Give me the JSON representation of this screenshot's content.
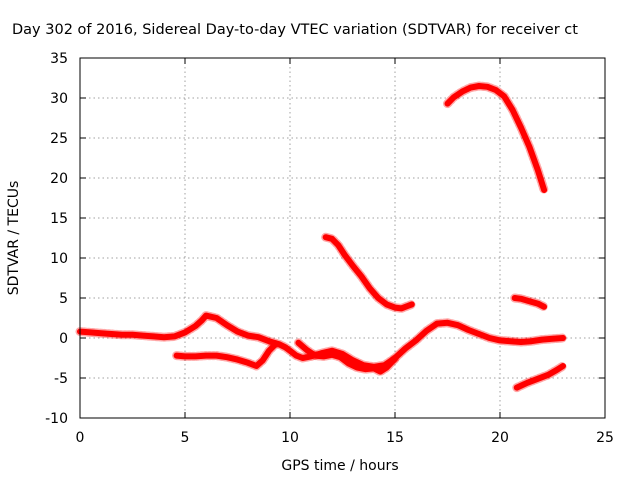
{
  "chart_data": {
    "type": "line",
    "title": "Day 302 of 2016, Sidereal Day-to-day VTEC variation (SDTVAR) for receiver ct",
    "xlabel": "GPS time / hours",
    "ylabel": "SDTVAR / TECUs",
    "xlim": [
      0,
      25
    ],
    "ylim": [
      -10,
      35
    ],
    "xticks": [
      "0",
      "5",
      "10",
      "15",
      "20",
      "25"
    ],
    "yticks": [
      "-10",
      "-5",
      "0",
      "5",
      "10",
      "15",
      "20",
      "25",
      "30",
      "35"
    ],
    "grid": true,
    "color": "#ff0000",
    "series": [
      {
        "points": [
          [
            0,
            0.8
          ],
          [
            0.5,
            0.7
          ],
          [
            1,
            0.6
          ],
          [
            1.5,
            0.5
          ],
          [
            2,
            0.4
          ],
          [
            2.5,
            0.4
          ],
          [
            3,
            0.3
          ],
          [
            3.5,
            0.2
          ],
          [
            4,
            0.1
          ],
          [
            4.5,
            0.2
          ],
          [
            5,
            0.7
          ],
          [
            5.5,
            1.5
          ],
          [
            5.8,
            2.2
          ],
          [
            6,
            2.8
          ],
          [
            6.5,
            2.5
          ],
          [
            7,
            1.6
          ],
          [
            7.5,
            0.8
          ],
          [
            8,
            0.3
          ],
          [
            8.5,
            0.1
          ],
          [
            9,
            -0.4
          ],
          [
            9.5,
            -0.8
          ],
          [
            9.8,
            -1.2
          ],
          [
            10,
            -1.6
          ],
          [
            10.3,
            -2.2
          ],
          [
            10.6,
            -2.5
          ],
          [
            11,
            -2.3
          ],
          [
            11.5,
            -1.9
          ],
          [
            12,
            -1.6
          ],
          [
            12.5,
            -2.0
          ],
          [
            13,
            -2.8
          ],
          [
            13.5,
            -3.4
          ],
          [
            14,
            -3.6
          ],
          [
            14.5,
            -3.4
          ],
          [
            15,
            -2.5
          ],
          [
            15.5,
            -1.3
          ],
          [
            16,
            -0.3
          ],
          [
            16.5,
            0.9
          ],
          [
            17,
            1.8
          ],
          [
            17.5,
            1.9
          ],
          [
            18,
            1.6
          ],
          [
            18.5,
            1.0
          ],
          [
            19,
            0.5
          ],
          [
            19.5,
            0.0
          ],
          [
            20,
            -0.3
          ],
          [
            20.5,
            -0.4
          ],
          [
            21,
            -0.5
          ],
          [
            21.5,
            -0.4
          ],
          [
            22,
            -0.2
          ],
          [
            22.5,
            -0.1
          ],
          [
            23,
            0.0
          ]
        ]
      },
      {
        "points": [
          [
            4.6,
            -2.2
          ],
          [
            5,
            -2.3
          ],
          [
            5.5,
            -2.3
          ],
          [
            6,
            -2.2
          ],
          [
            6.5,
            -2.2
          ],
          [
            7,
            -2.4
          ],
          [
            7.5,
            -2.7
          ],
          [
            8,
            -3.1
          ],
          [
            8.4,
            -3.5
          ],
          [
            8.7,
            -2.8
          ],
          [
            9,
            -1.6
          ],
          [
            9.3,
            -0.8
          ]
        ]
      },
      {
        "points": [
          [
            10.4,
            -0.6
          ],
          [
            10.8,
            -1.5
          ],
          [
            11.2,
            -2.2
          ],
          [
            11.6,
            -2.3
          ],
          [
            12,
            -2.1
          ],
          [
            12.4,
            -2.4
          ],
          [
            12.8,
            -3.2
          ],
          [
            13.2,
            -3.7
          ],
          [
            13.6,
            -3.9
          ],
          [
            14,
            -3.8
          ],
          [
            14.3,
            -4.2
          ],
          [
            14.6,
            -3.7
          ],
          [
            15,
            -2.6
          ]
        ]
      },
      {
        "points": [
          [
            11.7,
            12.6
          ],
          [
            12,
            12.4
          ],
          [
            12.3,
            11.6
          ],
          [
            12.6,
            10.4
          ],
          [
            13,
            9.0
          ],
          [
            13.4,
            7.7
          ],
          [
            13.8,
            6.2
          ],
          [
            14.2,
            5.0
          ],
          [
            14.6,
            4.2
          ],
          [
            15,
            3.8
          ],
          [
            15.3,
            3.7
          ],
          [
            15.6,
            4.0
          ],
          [
            15.8,
            4.2
          ]
        ]
      },
      {
        "points": [
          [
            17.5,
            29.3
          ],
          [
            17.8,
            30.1
          ],
          [
            18.2,
            30.8
          ],
          [
            18.6,
            31.3
          ],
          [
            19,
            31.5
          ],
          [
            19.4,
            31.4
          ],
          [
            19.8,
            31.0
          ],
          [
            20.2,
            30.2
          ],
          [
            20.6,
            28.5
          ],
          [
            21,
            26.3
          ],
          [
            21.4,
            23.9
          ],
          [
            21.8,
            21.0
          ],
          [
            22.1,
            18.5
          ]
        ]
      },
      {
        "points": [
          [
            20.7,
            5.0
          ],
          [
            21,
            4.9
          ],
          [
            21.4,
            4.6
          ],
          [
            21.8,
            4.3
          ],
          [
            22.1,
            3.9
          ]
        ]
      },
      {
        "points": [
          [
            20.8,
            -6.2
          ],
          [
            21.3,
            -5.6
          ],
          [
            21.8,
            -5.1
          ],
          [
            22.3,
            -4.6
          ],
          [
            22.7,
            -4.0
          ],
          [
            23,
            -3.5
          ]
        ]
      }
    ]
  }
}
